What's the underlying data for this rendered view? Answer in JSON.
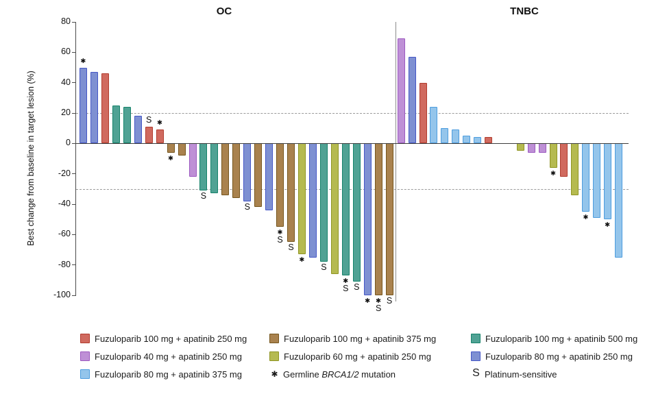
{
  "chart_data": {
    "type": "bar",
    "title": "",
    "ylabel": "Best change from baseline in target lesion (%)",
    "ylim": [
      -100,
      80
    ],
    "yticks": [
      80,
      60,
      40,
      20,
      0,
      -20,
      -40,
      -60,
      -80,
      -100
    ],
    "reference_lines": [
      20,
      -30
    ],
    "grid": false,
    "legend_position": "bottom",
    "panels": [
      {
        "label": "OC",
        "bars": [
          {
            "value": 50,
            "color": "blueviolet",
            "marks": "*"
          },
          {
            "value": 47,
            "color": "blueviolet",
            "marks": ""
          },
          {
            "value": 46,
            "color": "red",
            "marks": ""
          },
          {
            "value": 25,
            "color": "teal",
            "marks": ""
          },
          {
            "value": 24,
            "color": "teal",
            "marks": ""
          },
          {
            "value": 18,
            "color": "blueviolet",
            "marks": ""
          },
          {
            "value": 11,
            "color": "red",
            "marks": "S"
          },
          {
            "value": 9,
            "color": "red",
            "marks": "*"
          },
          {
            "value": -6,
            "color": "brown",
            "marks": "*"
          },
          {
            "value": -8,
            "color": "brown",
            "marks": ""
          },
          {
            "value": -22,
            "color": "purple",
            "marks": ""
          },
          {
            "value": -31,
            "color": "teal",
            "marks": "S"
          },
          {
            "value": -33,
            "color": "teal",
            "marks": ""
          },
          {
            "value": -34,
            "color": "brown",
            "marks": ""
          },
          {
            "value": -36,
            "color": "brown",
            "marks": ""
          },
          {
            "value": -38,
            "color": "blueviolet",
            "marks": "S"
          },
          {
            "value": -42,
            "color": "brown",
            "marks": ""
          },
          {
            "value": -44,
            "color": "blueviolet",
            "marks": ""
          },
          {
            "value": -55,
            "color": "brown",
            "marks": "*S"
          },
          {
            "value": -65,
            "color": "brown",
            "marks": "S"
          },
          {
            "value": -73,
            "color": "yellow",
            "marks": "*"
          },
          {
            "value": -75,
            "color": "blueviolet",
            "marks": ""
          },
          {
            "value": -78,
            "color": "teal",
            "marks": "S"
          },
          {
            "value": -86,
            "color": "yellow",
            "marks": ""
          },
          {
            "value": -87,
            "color": "teal",
            "marks": "*S"
          },
          {
            "value": -91,
            "color": "teal",
            "marks": "S"
          },
          {
            "value": -100,
            "color": "blueviolet",
            "marks": "*"
          },
          {
            "value": -100,
            "color": "brown",
            "marks": "*S"
          },
          {
            "value": -100,
            "color": "brown",
            "marks": "S"
          }
        ]
      },
      {
        "label": "TNBC",
        "bars": [
          {
            "value": 69,
            "color": "purple",
            "marks": ""
          },
          {
            "value": 57,
            "color": "blueviolet",
            "marks": ""
          },
          {
            "value": 40,
            "color": "red",
            "marks": ""
          },
          {
            "value": 24,
            "color": "lightblue",
            "marks": ""
          },
          {
            "value": 10,
            "color": "lightblue",
            "marks": ""
          },
          {
            "value": 9,
            "color": "lightblue",
            "marks": ""
          },
          {
            "value": 5,
            "color": "lightblue",
            "marks": ""
          },
          {
            "value": 4,
            "color": "lightblue",
            "marks": ""
          },
          {
            "value": 4,
            "color": "red",
            "marks": ""
          },
          {
            "value": 0,
            "color": "",
            "marks": ""
          },
          {
            "value": 0,
            "color": "",
            "marks": ""
          },
          {
            "value": -5,
            "color": "yellow",
            "marks": ""
          },
          {
            "value": -6,
            "color": "purple",
            "marks": ""
          },
          {
            "value": -6,
            "color": "purple",
            "marks": ""
          },
          {
            "value": -16,
            "color": "yellow",
            "marks": "*"
          },
          {
            "value": -22,
            "color": "red",
            "marks": ""
          },
          {
            "value": -34,
            "color": "yellow",
            "marks": ""
          },
          {
            "value": -45,
            "color": "lightblue",
            "marks": "*"
          },
          {
            "value": -49,
            "color": "lightblue",
            "marks": ""
          },
          {
            "value": -50,
            "color": "lightblue",
            "marks": "*"
          },
          {
            "value": -75,
            "color": "lightblue",
            "marks": ""
          }
        ]
      }
    ],
    "colors": {
      "red": {
        "fill": "#D06A5F",
        "stroke": "#B13C2E"
      },
      "brown": {
        "fill": "#A9824E",
        "stroke": "#75551D"
      },
      "teal": {
        "fill": "#50A294",
        "stroke": "#15826A"
      },
      "purple": {
        "fill": "#BE90D6",
        "stroke": "#9C59C0"
      },
      "yellow": {
        "fill": "#B5BA50",
        "stroke": "#8F9523"
      },
      "blueviolet": {
        "fill": "#7E90D2",
        "stroke": "#4456C6"
      },
      "lightblue": {
        "fill": "#94C5EB",
        "stroke": "#4C9CDE"
      }
    }
  },
  "legend": {
    "items": [
      {
        "type": "swatch",
        "color": "red",
        "label": "Fuzuloparib 100 mg + apatinib 250 mg"
      },
      {
        "type": "swatch",
        "color": "brown",
        "label": "Fuzuloparib 100 mg + apatinib 375 mg"
      },
      {
        "type": "swatch",
        "color": "teal",
        "label": "Fuzuloparib 100 mg + apatinib 500 mg"
      },
      {
        "type": "swatch",
        "color": "purple",
        "label": "Fuzuloparib 40 mg + apatinib 250 mg"
      },
      {
        "type": "swatch",
        "color": "yellow",
        "label": "Fuzuloparib 60 mg + apatinib 250 mg"
      },
      {
        "type": "swatch",
        "color": "blueviolet",
        "label": "Fuzuloparib 80 mg + apatinib 250 mg"
      },
      {
        "type": "swatch",
        "color": "lightblue",
        "label": "Fuzuloparib 80 mg + apatinib 375 mg"
      },
      {
        "type": "marker",
        "symbol": "*",
        "label_pre": "Germline ",
        "label_italic": "BRCA1/2",
        "label_post": " mutation"
      },
      {
        "type": "marker",
        "symbol": "S",
        "label": "Platinum-sensitive"
      }
    ]
  }
}
